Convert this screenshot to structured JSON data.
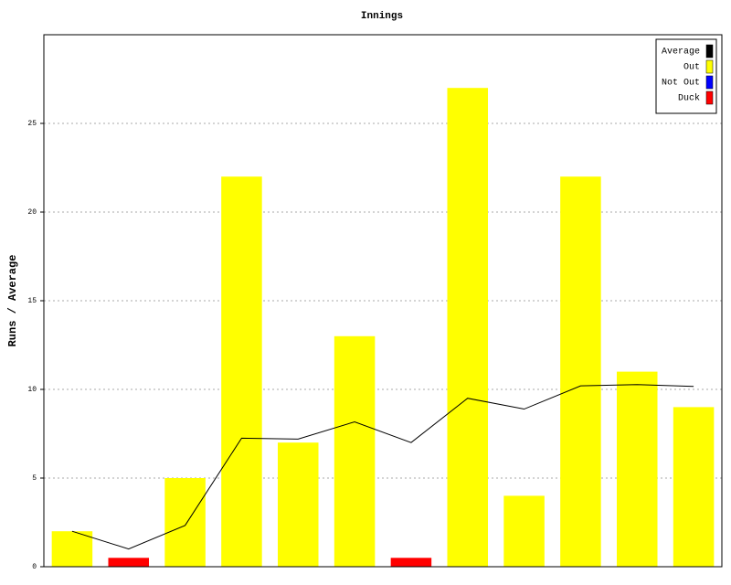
{
  "chart_data": {
    "type": "bar",
    "title": "Innings",
    "y_label": "Runs / Average",
    "categories": [
      null,
      null,
      null,
      null,
      null,
      null,
      null,
      null,
      null,
      null,
      null,
      null
    ],
    "series": [
      {
        "name": "Average",
        "color": "#000000",
        "type": "line",
        "values": [
          2,
          1,
          2.33,
          7.25,
          7.2,
          8.17,
          7,
          9.5,
          8.89,
          10.2,
          10.27,
          10.17
        ]
      },
      {
        "name": "Out",
        "color": "#ffff00",
        "type": "bar",
        "values": [
          2,
          null,
          5,
          22,
          7,
          13,
          null,
          27,
          4,
          22,
          11,
          9
        ]
      },
      {
        "name": "Not Out",
        "color": "#0000ff",
        "type": "bar",
        "values": [
          null,
          null,
          null,
          null,
          null,
          null,
          null,
          null,
          null,
          null,
          null,
          null
        ]
      },
      {
        "name": "Duck",
        "color": "#ff0000",
        "type": "bar",
        "values": [
          null,
          0.5,
          null,
          null,
          null,
          null,
          0.5,
          null,
          null,
          null,
          null,
          null
        ]
      }
    ],
    "ylim": [
      0,
      30
    ],
    "yticks": [
      0,
      5,
      10,
      15,
      20,
      25
    ],
    "grid": true,
    "legend": "top-right"
  }
}
